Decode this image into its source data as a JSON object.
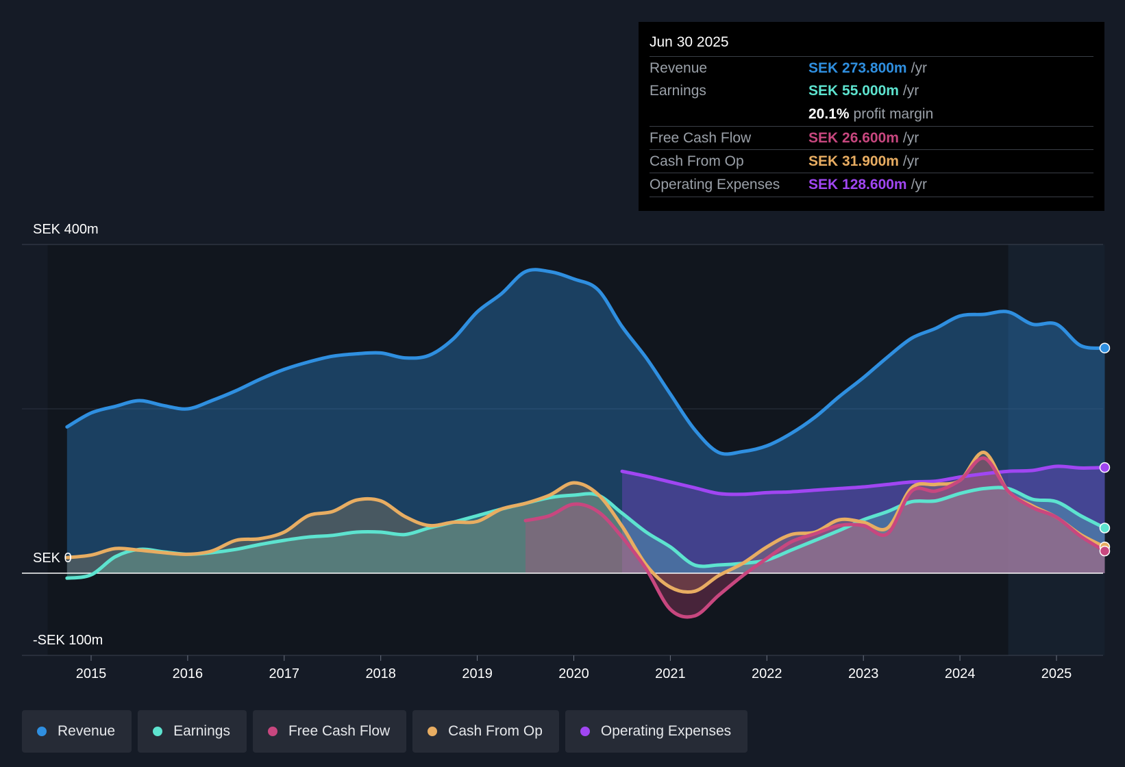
{
  "colors": {
    "revenue": "#2f8fe0",
    "earnings": "#5de3cf",
    "fcf": "#c8477f",
    "cfo": "#e8ad62",
    "opex": "#a046f2",
    "background": "#151b26"
  },
  "tooltip": {
    "date": "Jun 30 2025",
    "rows": [
      {
        "label": "Revenue",
        "value": "SEK 273.800m",
        "unit": "/yr",
        "color": "#2f8fe0"
      },
      {
        "label": "Earnings",
        "value": "SEK 55.000m",
        "unit": "/yr",
        "color": "#5de3cf"
      },
      {
        "label": "",
        "value": "20.1%",
        "unit": "profit margin",
        "color": "#ffffff"
      },
      {
        "label": "Free Cash Flow",
        "value": "SEK 26.600m",
        "unit": "/yr",
        "color": "#c8477f"
      },
      {
        "label": "Cash From Op",
        "value": "SEK 31.900m",
        "unit": "/yr",
        "color": "#e8ad62"
      },
      {
        "label": "Operating Expenses",
        "value": "SEK 128.600m",
        "unit": "/yr",
        "color": "#a046f2"
      }
    ]
  },
  "legend": [
    {
      "label": "Revenue",
      "color": "#2f8fe0"
    },
    {
      "label": "Earnings",
      "color": "#5de3cf"
    },
    {
      "label": "Free Cash Flow",
      "color": "#c8477f"
    },
    {
      "label": "Cash From Op",
      "color": "#e8ad62"
    },
    {
      "label": "Operating Expenses",
      "color": "#a046f2"
    }
  ],
  "chart_data": {
    "type": "area",
    "title": "",
    "xlabel": "",
    "ylabel": "",
    "xlim": [
      2014.55,
      2025.5
    ],
    "ylim": [
      -100,
      400
    ],
    "y_axis_labels": [
      {
        "value": 400,
        "label": "SEK 400m"
      },
      {
        "value": 0,
        "label": "SEK 0"
      },
      {
        "value": -100,
        "label": "-SEK 100m"
      }
    ],
    "x_ticks": [
      2015,
      2016,
      2017,
      2018,
      2019,
      2020,
      2021,
      2022,
      2023,
      2024,
      2025
    ],
    "x_tick_labels": [
      "2015",
      "2016",
      "2017",
      "2018",
      "2019",
      "2020",
      "2021",
      "2022",
      "2023",
      "2024",
      "2025"
    ],
    "forecast_region_start": 2024.5,
    "series": [
      {
        "name": "Revenue",
        "key": "revenue",
        "x": [
          2014.75,
          2015.0,
          2015.25,
          2015.5,
          2015.75,
          2016.0,
          2016.25,
          2016.5,
          2016.75,
          2017.0,
          2017.25,
          2017.5,
          2017.75,
          2018.0,
          2018.25,
          2018.5,
          2018.75,
          2019.0,
          2019.25,
          2019.5,
          2019.75,
          2020.0,
          2020.25,
          2020.5,
          2020.75,
          2021.0,
          2021.25,
          2021.5,
          2021.75,
          2022.0,
          2022.25,
          2022.5,
          2022.75,
          2023.0,
          2023.25,
          2023.5,
          2023.75,
          2024.0,
          2024.25,
          2024.5,
          2024.75,
          2025.0,
          2025.25,
          2025.5
        ],
        "values": [
          178,
          195,
          203,
          210,
          204,
          200,
          210,
          222,
          236,
          248,
          257,
          264,
          267,
          268,
          262,
          265,
          285,
          318,
          340,
          367,
          367,
          358,
          345,
          300,
          262,
          218,
          175,
          147,
          148,
          155,
          170,
          190,
          215,
          238,
          263,
          286,
          298,
          313,
          315,
          318,
          303,
          303,
          277,
          274
        ]
      },
      {
        "name": "Earnings",
        "key": "earnings",
        "x": [
          2014.75,
          2015.0,
          2015.25,
          2015.5,
          2015.75,
          2016.0,
          2016.25,
          2016.5,
          2016.75,
          2017.0,
          2017.25,
          2017.5,
          2017.75,
          2018.0,
          2018.25,
          2018.5,
          2018.75,
          2019.0,
          2019.25,
          2019.5,
          2019.75,
          2020.0,
          2020.25,
          2020.5,
          2020.75,
          2021.0,
          2021.25,
          2021.5,
          2021.75,
          2022.0,
          2022.25,
          2022.5,
          2022.75,
          2023.0,
          2023.25,
          2023.5,
          2023.75,
          2024.0,
          2024.25,
          2024.5,
          2024.75,
          2025.0,
          2025.25,
          2025.5
        ],
        "values": [
          -6,
          -2,
          20,
          29,
          26,
          23,
          25,
          29,
          35,
          40,
          44,
          46,
          50,
          50,
          47,
          55,
          62,
          70,
          78,
          85,
          92,
          95,
          95,
          73,
          50,
          32,
          10,
          10,
          12,
          16,
          28,
          40,
          52,
          65,
          75,
          87,
          88,
          97,
          103,
          103,
          90,
          87,
          70,
          55
        ]
      },
      {
        "name": "Free Cash Flow",
        "key": "fcf",
        "x": [
          2019.5,
          2019.75,
          2020.0,
          2020.25,
          2020.5,
          2020.75,
          2021.0,
          2021.25,
          2021.5,
          2021.75,
          2022.0,
          2022.25,
          2022.5,
          2022.75,
          2023.0,
          2023.25,
          2023.5,
          2023.75,
          2024.0,
          2024.25,
          2024.5,
          2024.75,
          2025.0,
          2025.25,
          2025.5
        ],
        "values": [
          64,
          70,
          84,
          75,
          44,
          5,
          -44,
          -52,
          -27,
          -3,
          18,
          38,
          48,
          58,
          58,
          48,
          100,
          100,
          113,
          140,
          100,
          80,
          68,
          45,
          27
        ]
      },
      {
        "name": "Cash From Op",
        "key": "cfo",
        "x": [
          2014.75,
          2015.0,
          2015.25,
          2015.5,
          2015.75,
          2016.0,
          2016.25,
          2016.5,
          2016.75,
          2017.0,
          2017.25,
          2017.5,
          2017.75,
          2018.0,
          2018.25,
          2018.5,
          2018.75,
          2019.0,
          2019.25,
          2019.5,
          2019.75,
          2020.0,
          2020.25,
          2020.5,
          2020.75,
          2021.0,
          2021.25,
          2021.5,
          2021.75,
          2022.0,
          2022.25,
          2022.5,
          2022.75,
          2023.0,
          2023.25,
          2023.5,
          2023.75,
          2024.0,
          2024.25,
          2024.5,
          2024.75,
          2025.0,
          2025.25,
          2025.5
        ],
        "values": [
          19,
          22,
          30,
          28,
          25,
          23,
          27,
          40,
          42,
          50,
          70,
          75,
          89,
          88,
          69,
          58,
          62,
          63,
          78,
          85,
          95,
          110,
          96,
          57,
          10,
          -17,
          -22,
          -3,
          12,
          32,
          47,
          50,
          65,
          62,
          55,
          104,
          108,
          113,
          147,
          100,
          82,
          68,
          47,
          32
        ]
      },
      {
        "name": "Operating Expenses",
        "key": "opex",
        "x": [
          2020.5,
          2020.75,
          2021.0,
          2021.25,
          2021.5,
          2021.75,
          2022.0,
          2022.25,
          2022.5,
          2022.75,
          2023.0,
          2023.25,
          2023.5,
          2023.75,
          2024.0,
          2024.25,
          2024.5,
          2024.75,
          2025.0,
          2025.25,
          2025.5
        ],
        "values": [
          124,
          118,
          111,
          104,
          97,
          96,
          98,
          99,
          101,
          103,
          105,
          108,
          111,
          112,
          117,
          121,
          124,
          125,
          130,
          128,
          128.6
        ]
      }
    ]
  }
}
